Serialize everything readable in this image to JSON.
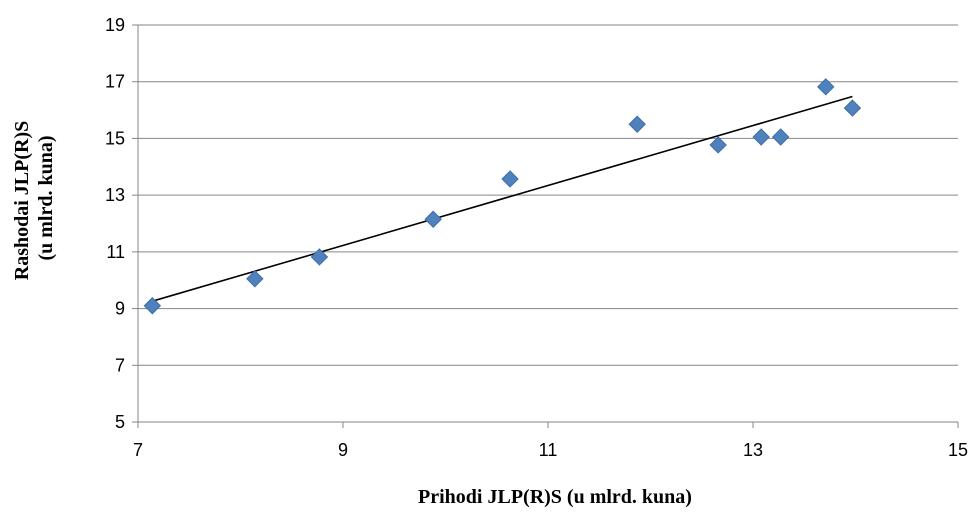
{
  "chart_data": {
    "type": "scatter",
    "title": "",
    "xlabel": "Prihodi JLP(R)S (u mlrd. kuna)",
    "ylabel_lines": [
      "Rashodai JLP(R)S",
      "(u mlrd. kuna)"
    ],
    "xlim": [
      7,
      15
    ],
    "ylim": [
      5,
      19
    ],
    "x_ticks": [
      7,
      9,
      11,
      13,
      15
    ],
    "y_ticks": [
      5,
      7,
      9,
      11,
      13,
      15,
      17,
      19
    ],
    "grid": "horizontal",
    "legend": "none",
    "marker": "diamond",
    "colors": {
      "marker_fill": "#4f81bd",
      "trendline": "#000000",
      "grid": "#868686"
    },
    "series": [
      {
        "points": [
          {
            "x": 7.14,
            "y": 9.1
          },
          {
            "x": 8.14,
            "y": 10.05
          },
          {
            "x": 8.77,
            "y": 10.82
          },
          {
            "x": 9.88,
            "y": 12.15
          },
          {
            "x": 10.63,
            "y": 13.57
          },
          {
            "x": 11.87,
            "y": 15.5
          },
          {
            "x": 12.66,
            "y": 14.77
          },
          {
            "x": 13.08,
            "y": 15.05
          },
          {
            "x": 13.27,
            "y": 15.05
          },
          {
            "x": 13.71,
            "y": 16.82
          },
          {
            "x": 13.97,
            "y": 16.07
          }
        ]
      }
    ],
    "trendline": {
      "type": "linear",
      "from": {
        "x": 7.14,
        "y": 9.26
      },
      "to": {
        "x": 13.97,
        "y": 16.48
      }
    }
  }
}
